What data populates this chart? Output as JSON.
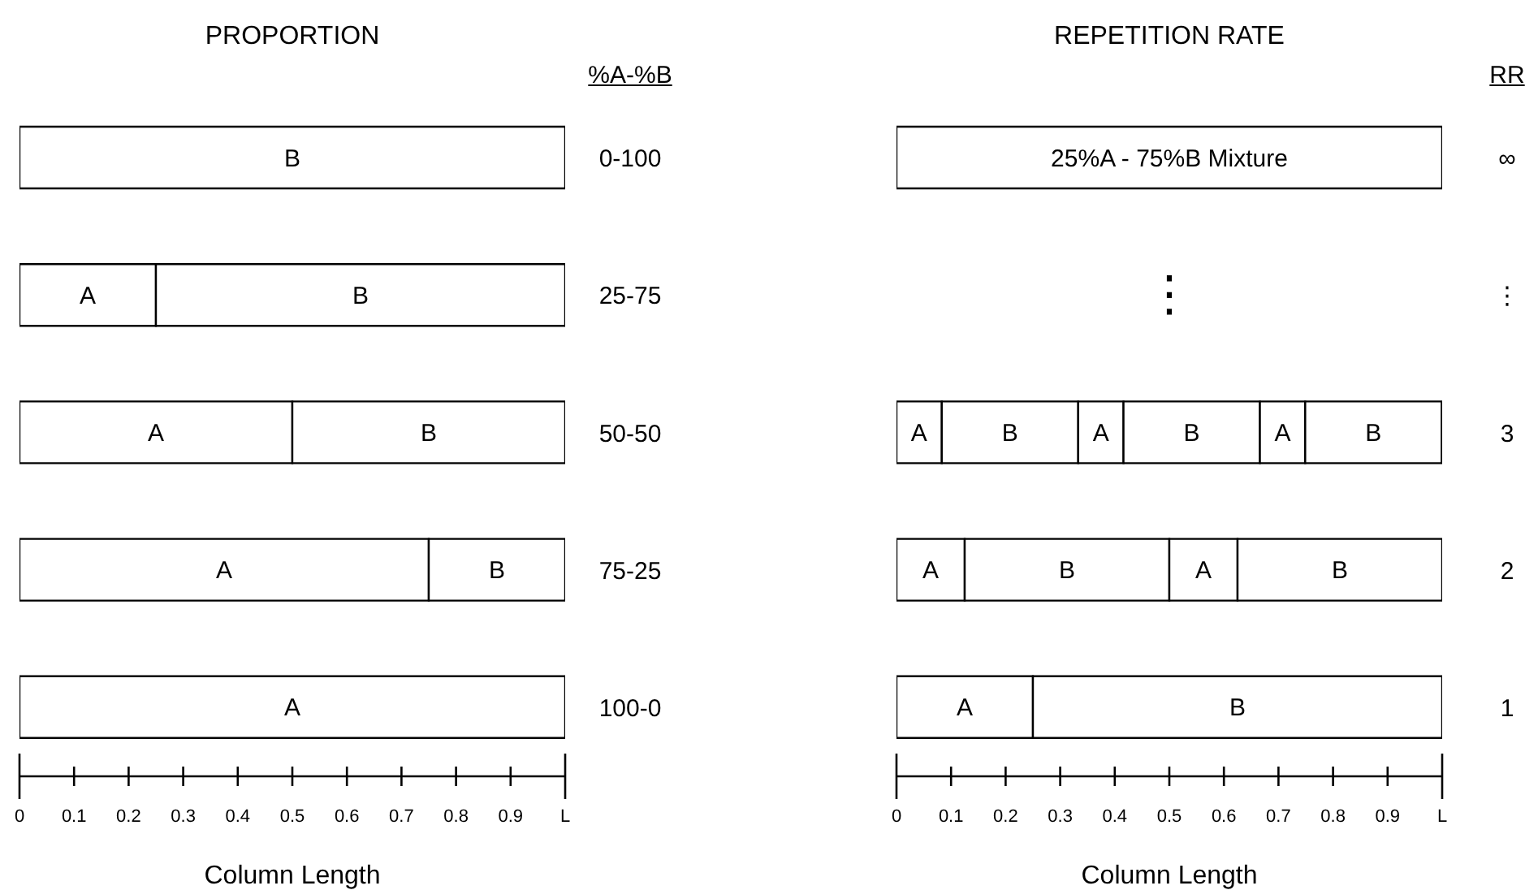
{
  "chart_data": [
    {
      "type": "bar",
      "orientation": "horizontal",
      "stacked": true,
      "title": "PROPORTION",
      "ylabel": "%A-%B",
      "xlabel": "Column Length",
      "categories": [
        "0-100",
        "25-75",
        "50-50",
        "75-25",
        "100-0"
      ],
      "series": [
        {
          "name": "A",
          "color": "#ffffff",
          "values": [
            0,
            0.25,
            0.5,
            0.75,
            1
          ]
        },
        {
          "name": "B",
          "color": "#ffffff",
          "values": [
            1,
            0.75,
            0.5,
            0.25,
            0
          ]
        }
      ],
      "xlim": [
        0,
        1
      ],
      "xticks": [
        0,
        0.1,
        0.2,
        0.3,
        0.4,
        0.5,
        0.6,
        0.7,
        0.8,
        0.9,
        {
          "value": 1,
          "label": "L"
        }
      ]
    },
    {
      "type": "bar",
      "orientation": "horizontal",
      "stacked": true,
      "title": "REPETITION RATE",
      "ylabel": "RR",
      "xlabel": "Column Length",
      "categories": [
        "∞",
        "⋮",
        "3",
        "2",
        "1"
      ],
      "series": [
        {
          "name": "25%A - 75%B Mixture",
          "color": "#ffffff",
          "values": [
            1,
            null,
            null,
            null,
            null
          ]
        },
        {
          "name": "A",
          "color": "#ffffff",
          "values": [
            null,
            null,
            0.083,
            0.125,
            0.25
          ]
        },
        {
          "name": "B",
          "color": "#ffffff",
          "values": [
            null,
            null,
            0.25,
            0.375,
            0.75
          ]
        },
        {
          "name": "A",
          "color": "#ffffff",
          "values": [
            null,
            null,
            0.083,
            0.125,
            null
          ]
        },
        {
          "name": "B",
          "color": "#ffffff",
          "values": [
            null,
            null,
            0.25,
            0.375,
            null
          ]
        },
        {
          "name": "A",
          "color": "#ffffff",
          "values": [
            null,
            null,
            0.083,
            null,
            null
          ]
        },
        {
          "name": "B",
          "color": "#ffffff",
          "values": [
            null,
            null,
            0.25,
            null,
            null
          ]
        }
      ],
      "annotations": [
        "⋮"
      ],
      "xlim": [
        0,
        1
      ],
      "xticks": [
        0,
        0.1,
        0.2,
        0.3,
        0.4,
        0.5,
        0.6,
        0.7,
        0.8,
        0.9,
        {
          "value": 1,
          "label": "L"
        }
      ]
    }
  ]
}
